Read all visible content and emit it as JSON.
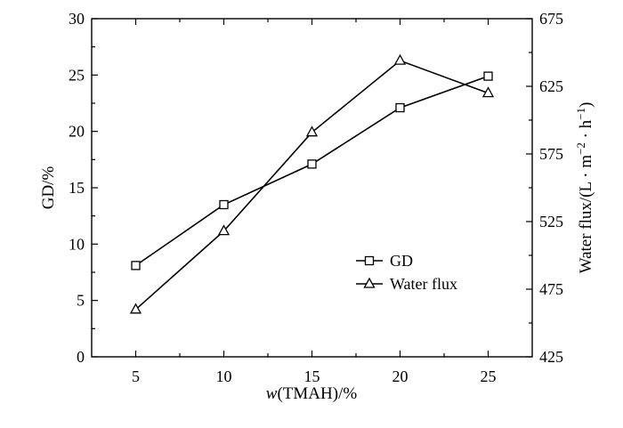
{
  "chart_data": {
    "type": "line",
    "xlabel_italic": "w",
    "xlabel_rest": "(TMAH)/%",
    "ylabel": "GD/%",
    "y2label_prefix": "Water flux/(L · m",
    "y2label_sup1": "−2",
    "y2label_mid": " · h",
    "y2label_sup2": "−1",
    "y2label_suffix": ")",
    "x": [
      5,
      10,
      15,
      20,
      25
    ],
    "xlim": [
      2.5,
      27.5
    ],
    "xticks": [
      "5",
      "10",
      "15",
      "20",
      "25"
    ],
    "xticks_values": [
      5,
      10,
      15,
      20,
      25
    ],
    "ylim": [
      0,
      30
    ],
    "yticks": [
      "0",
      "5",
      "10",
      "15",
      "20",
      "25",
      "30"
    ],
    "yticks_values": [
      0,
      5,
      10,
      15,
      20,
      25,
      30
    ],
    "y2lim": [
      425,
      675
    ],
    "y2ticks": [
      "425",
      "475",
      "525",
      "575",
      "625",
      "675"
    ],
    "y2ticks_values": [
      425,
      475,
      525,
      575,
      625,
      675
    ],
    "series": [
      {
        "name": "GD",
        "axis": "left",
        "marker": "square",
        "values": [
          8.1,
          13.5,
          17.1,
          22.1,
          24.9
        ]
      },
      {
        "name": "Water flux",
        "axis": "right",
        "marker": "triangle",
        "values": [
          460,
          518,
          591,
          644,
          620
        ]
      }
    ],
    "legend_position": "lower-right",
    "grid": false
  }
}
